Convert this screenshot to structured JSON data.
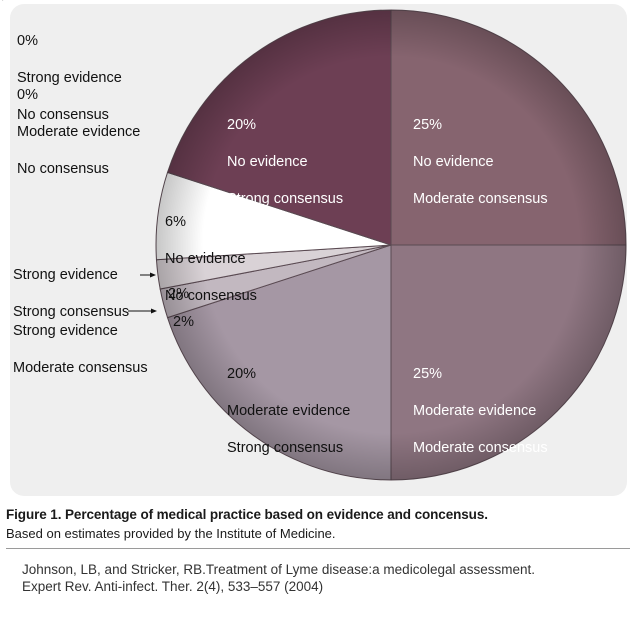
{
  "chart_data": {
    "type": "pie",
    "slices": [
      {
        "pct": "25%",
        "value": 25,
        "evidence": "No evidence",
        "consensus": "Moderate consensus",
        "color": "#86646f"
      },
      {
        "pct": "25%",
        "value": 25,
        "evidence": "Moderate evidence",
        "consensus": "Moderate consensus",
        "color": "#8f7682"
      },
      {
        "pct": "20%",
        "value": 20,
        "evidence": "Moderate evidence",
        "consensus": "Strong consensus",
        "color": "#a597a4"
      },
      {
        "pct": "2%",
        "value": 2,
        "evidence": "Strong evidence",
        "consensus": "Moderate consensus",
        "color": "#c2b8c0"
      },
      {
        "pct": "2%",
        "value": 2,
        "evidence": "Strong evidence",
        "consensus": "Strong consensus",
        "color": "#d9d2d6"
      },
      {
        "pct": "6%",
        "value": 6,
        "evidence": "No evidence",
        "consensus": "No consensus",
        "color": "#ffffff"
      },
      {
        "pct": "20%",
        "value": 20,
        "evidence": "No evidence",
        "consensus": "Strong consensus",
        "color": "#6d3f54"
      }
    ],
    "zero_slices": [
      {
        "pct": "0%",
        "evidence": "Strong evidence",
        "consensus": "No consensus"
      },
      {
        "pct": "0%",
        "evidence": "Moderate evidence",
        "consensus": "No consensus"
      }
    ],
    "outside_labels": {
      "strong_strong": {
        "evidence": "Strong evidence",
        "consensus": "Strong consensus"
      },
      "strong_moderate": {
        "evidence": "Strong evidence",
        "consensus": "Moderate consensus"
      }
    }
  },
  "caption": {
    "title": "Figure 1. Percentage of medical practice based on evidence and concensus.",
    "subtitle": "Based on estimates provided by the Institute of Medicine."
  },
  "citation": {
    "line1": "Johnson, LB, and Stricker, RB.Treatment of Lyme disease:a medicolegal assessment.",
    "line2": "Expert Rev. Anti-infect. Ther. 2(4), 533–557 (2004)"
  },
  "corner_mark": "′"
}
